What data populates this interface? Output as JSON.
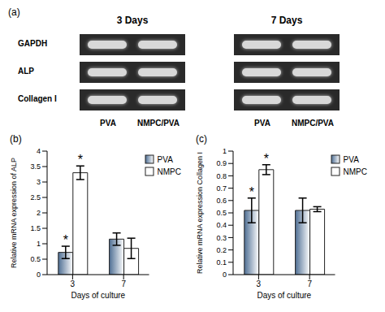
{
  "gel": {
    "label": "(a)",
    "groups": [
      "3 Days",
      "7 Days"
    ],
    "rows": [
      "GAPDH",
      "ALP",
      "Collagen I"
    ],
    "lanes": [
      "PVA",
      "NMPC/PVA"
    ]
  },
  "chart_data": [
    {
      "type": "bar",
      "annotations": [
        "(b)"
      ],
      "y_label": "Relative mRNA expression of ALP",
      "x_label": "Days of culture",
      "categories": [
        "3",
        "7"
      ],
      "series": [
        {
          "name": "PVA",
          "color": "#4f6f94",
          "values": [
            0.72,
            1.15
          ],
          "errors": [
            0.2,
            0.2
          ],
          "notes": [
            "*",
            null
          ]
        },
        {
          "name": "NMPC",
          "color": "#ffffff",
          "values": [
            3.3,
            0.85
          ],
          "errors": [
            0.22,
            0.33
          ],
          "notes": [
            "*",
            null
          ]
        }
      ],
      "ylim": [
        0,
        4
      ],
      "yticks": [
        0,
        0.5,
        1,
        1.5,
        2,
        2.5,
        3,
        3.5,
        4
      ],
      "legend": "upper right"
    },
    {
      "type": "bar",
      "annotations": [
        "(c)"
      ],
      "y_label": "Relative mRNA expression Collagen I",
      "x_label": "Days of culture",
      "categories": [
        "3",
        "7"
      ],
      "series": [
        {
          "name": "PVA",
          "color": "#4f6f94",
          "values": [
            0.52,
            0.52
          ],
          "errors": [
            0.1,
            0.1
          ],
          "notes": [
            "*",
            null
          ]
        },
        {
          "name": "NMPC",
          "color": "#ffffff",
          "values": [
            0.85,
            0.53
          ],
          "errors": [
            0.04,
            0.02
          ],
          "notes": [
            "*",
            null
          ]
        }
      ],
      "ylim": [
        0,
        1
      ],
      "yticks": [
        0,
        0.1,
        0.2,
        0.3,
        0.4,
        0.5,
        0.6,
        0.7,
        0.8,
        0.9,
        1
      ],
      "legend": "upper right"
    }
  ]
}
